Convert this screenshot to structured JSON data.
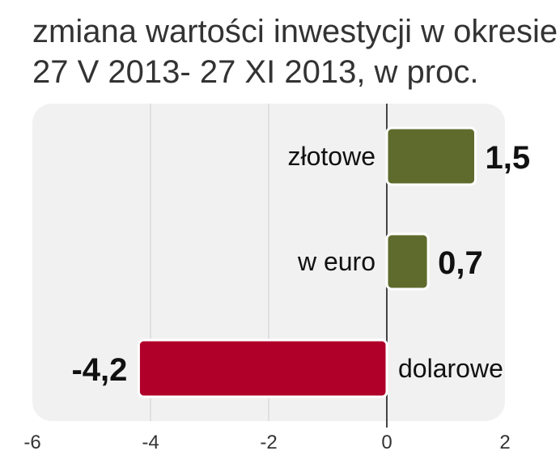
{
  "title": {
    "line1": "zmiana wartości inwestycji w okresie",
    "line2": "27 V 2013- 27 XI 2013, w proc."
  },
  "colors": {
    "positive": "#5f6b2d",
    "negative": "#b0002a",
    "plot_bg": "#f1f1f1",
    "zero_line": "#444444",
    "grid": "#cfcfcf"
  },
  "chart_data": {
    "type": "bar",
    "orientation": "horizontal",
    "title": "zmiana wartości inwestycji w okresie 27 V 2013- 27 XI 2013, w proc.",
    "categories": [
      "złotowe",
      "w euro",
      "dolarowe"
    ],
    "values": [
      1.5,
      0.7,
      -4.2
    ],
    "value_labels": [
      "1,5",
      "0,7",
      "-4,2"
    ],
    "xlim": [
      -6,
      2
    ],
    "x_ticks": [
      -6,
      -4,
      -2,
      0,
      2
    ],
    "x_tick_labels": [
      "-6",
      "-4",
      "-2",
      "0",
      "2"
    ],
    "grid": true,
    "xlabel": "",
    "ylabel": ""
  }
}
